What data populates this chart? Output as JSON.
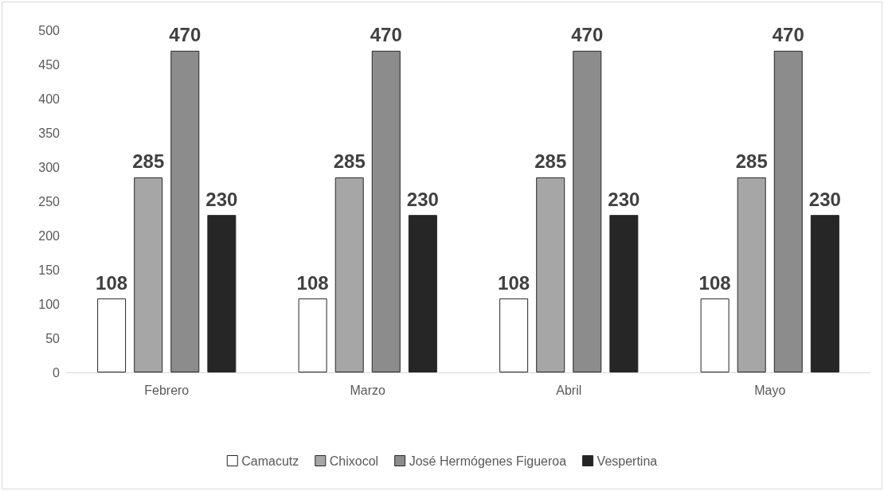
{
  "chart_data": {
    "type": "bar",
    "categories": [
      "Febrero",
      "Marzo",
      "Abril",
      "Mayo"
    ],
    "series": [
      {
        "name": "Camacutz",
        "color": "#ffffff",
        "values": [
          108,
          108,
          108,
          108
        ]
      },
      {
        "name": "Chixocol",
        "color": "#a6a6a6",
        "values": [
          285,
          285,
          285,
          285
        ]
      },
      {
        "name": "José Hermógenes Figueroa",
        "color": "#8c8c8c",
        "values": [
          470,
          470,
          470,
          470
        ]
      },
      {
        "name": "Vespertina",
        "color": "#262626",
        "values": [
          230,
          230,
          230,
          230
        ]
      }
    ],
    "ylim": [
      0,
      500
    ],
    "yticks": [
      0,
      50,
      100,
      150,
      200,
      250,
      300,
      350,
      400,
      450,
      500
    ],
    "grid": false,
    "legend": "bottom",
    "data_labels": true
  }
}
